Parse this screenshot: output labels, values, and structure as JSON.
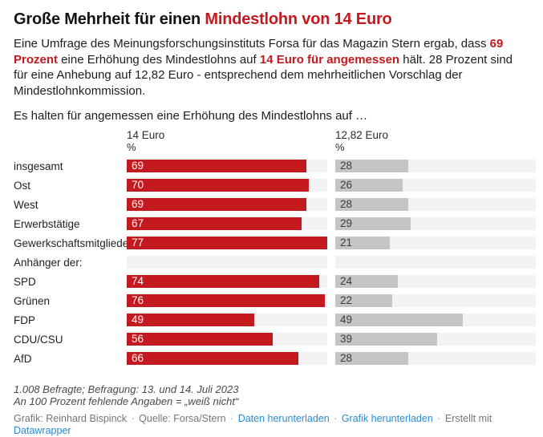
{
  "header": {
    "title_plain": "Große Mehrheit für einen ",
    "title_highlight": "Mindestlohn von 14 Euro",
    "description_segments": [
      {
        "text": "Eine Umfrage des Meinungsforschungsinstituts Forsa für das Magazin Stern ergab, dass ",
        "style": "normal"
      },
      {
        "text": "69 Prozent",
        "style": "highlight"
      },
      {
        "text": " eine Erhöhung des Mindestlohns auf ",
        "style": "normal"
      },
      {
        "text": "14 Euro für angemessen",
        "style": "highlight"
      },
      {
        "text": " hält. 28 Prozent sind für eine Anhebung auf 12,82 Euro - entsprechend dem mehrheitlichen Vorschlag der Mindestlohnkommission.",
        "style": "normal"
      }
    ],
    "subtitle": "Es halten für angemessen eine Erhöhung des Mindestlohns auf …"
  },
  "chart_data": {
    "type": "bar",
    "orientation": "horizontal",
    "columns": [
      {
        "label": "14 Euro",
        "unit": "%"
      },
      {
        "label": "12,82 Euro",
        "unit": "%"
      }
    ],
    "categories": [
      "insgesamt",
      "Ost",
      "West",
      "Erwerbstätige",
      "Gewerkschaftsmitglieder",
      "Anhänger der:",
      "SPD",
      "Grünen",
      "FDP",
      "CDU/CSU",
      "AfD"
    ],
    "series": [
      {
        "name": "14 Euro",
        "values": [
          69,
          70,
          69,
          67,
          77,
          null,
          74,
          76,
          49,
          56,
          66
        ]
      },
      {
        "name": "12,82 Euro",
        "values": [
          28,
          26,
          28,
          29,
          21,
          null,
          24,
          22,
          49,
          39,
          28
        ]
      }
    ],
    "scale_max": 77,
    "xlim": [
      0,
      77
    ],
    "grid": false,
    "legend": "column headers",
    "colors": {
      "bar1": "#c4191e",
      "bar2": "#c5c5c5",
      "track": "#f2f2f2",
      "accent": "#c4191e"
    }
  },
  "footer": {
    "notes": [
      "1.008 Befragte; Befragung: 13. und 14. Juli 2023",
      "An 100 Prozent fehlende Angaben = „weiß nicht“"
    ],
    "byline": "Grafik: Reinhard Bispinck",
    "source": "Quelle: Forsa/Stern",
    "separator": "·",
    "links": {
      "data": "Daten herunterladen",
      "image": "Grafik herunterladen",
      "created_with": "Erstellt mit",
      "tool": "Datawrapper"
    }
  }
}
